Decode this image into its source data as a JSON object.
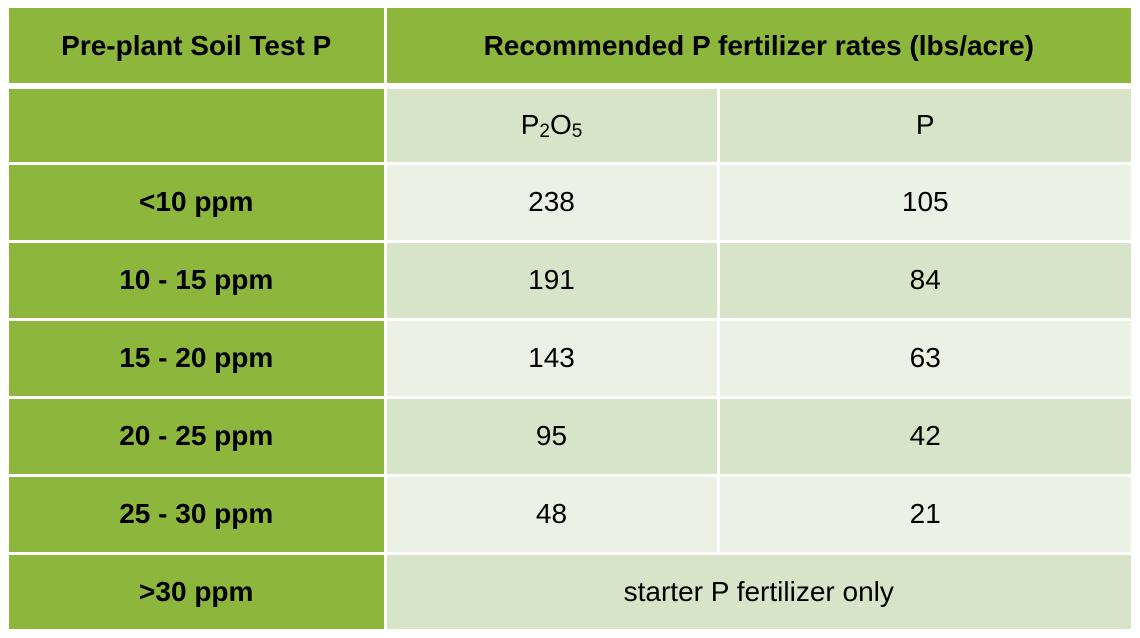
{
  "header": {
    "soil_test_label": "Pre-plant Soil Test P",
    "rates_label": "Recommended P fertilizer rates (lbs/acre)"
  },
  "subheader": {
    "p2o5": {
      "base1": "P",
      "sub1": "2",
      "base2": "O",
      "sub2": "5"
    },
    "p_label": "P"
  },
  "rows": [
    {
      "range": "<10 ppm",
      "p2o5": "238",
      "p": "105"
    },
    {
      "range": "10 - 15 ppm",
      "p2o5": "191",
      "p": "84"
    },
    {
      "range": "15 - 20 ppm",
      "p2o5": "143",
      "p": "63"
    },
    {
      "range": "20 - 25 ppm",
      "p2o5": "95",
      "p": "42"
    },
    {
      "range": "25 - 30 ppm",
      "p2o5": "48",
      "p": "21"
    }
  ],
  "last_row": {
    "range": ">30 ppm",
    "note": "starter P fertilizer only"
  },
  "colors": {
    "header_green": "#8db63c",
    "light_row": "#ecf1e6",
    "medium_row": "#d7e4c8"
  }
}
